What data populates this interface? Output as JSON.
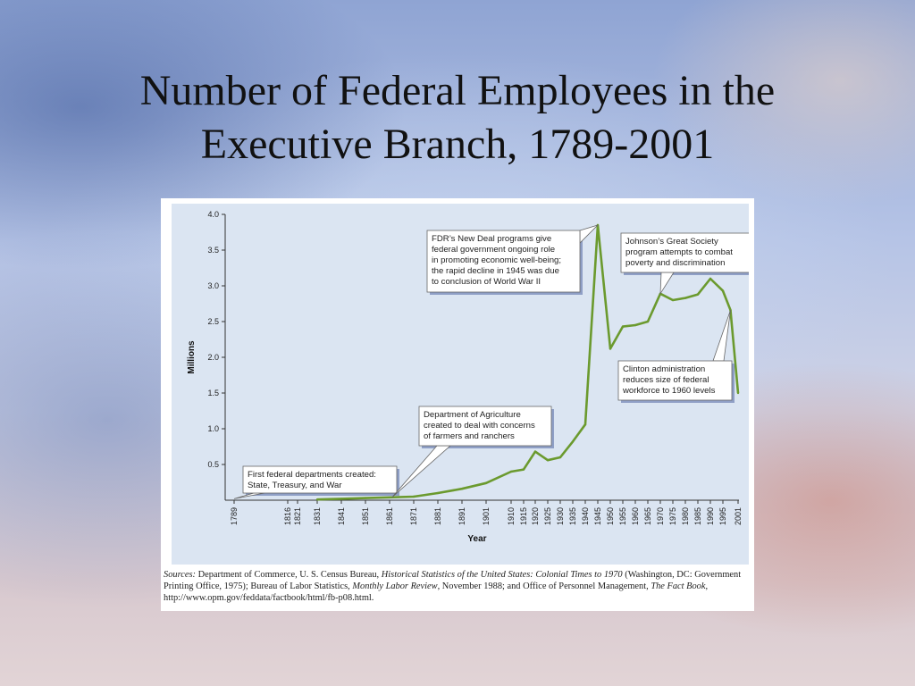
{
  "slide": {
    "title_line1": "Number of Federal Employees in the",
    "title_line2": "Executive Branch, 1789-2001"
  },
  "chart_data": {
    "type": "line",
    "title": "",
    "xlabel": "Year",
    "ylabel": "Millions",
    "ylim": [
      0,
      4.0
    ],
    "yticks": [
      "4.0",
      "3.5",
      "3.0",
      "2.5",
      "2.0",
      "1.5",
      "1.0",
      "0.5"
    ],
    "xticks": [
      "1789",
      "1816",
      "1821",
      "1831",
      "1841",
      "1851",
      "1861",
      "1871",
      "1881",
      "1891",
      "1901",
      "1910",
      "1915",
      "1920",
      "1925",
      "1930",
      "1935",
      "1940",
      "1945",
      "1950",
      "1955",
      "1960",
      "1965",
      "1970",
      "1975",
      "1980",
      "1985",
      "1990",
      "1995",
      "2001"
    ],
    "grid": false,
    "line_color": "#6b9a2e",
    "series": [
      {
        "x": [
          1831,
          1841,
          1851,
          1861,
          1871,
          1881,
          1891,
          1901,
          1910,
          1915,
          1920,
          1925,
          1930,
          1935,
          1940,
          1945,
          1950,
          1955,
          1960,
          1965,
          1970,
          1975,
          1980,
          1985,
          1990,
          1995,
          1998,
          2001
        ],
        "values": [
          0.01,
          0.02,
          0.03,
          0.04,
          0.05,
          0.1,
          0.16,
          0.24,
          0.4,
          0.43,
          0.68,
          0.56,
          0.6,
          0.82,
          1.06,
          3.85,
          2.12,
          2.43,
          2.45,
          2.5,
          2.89,
          2.8,
          2.83,
          2.88,
          3.1,
          2.93,
          2.66,
          1.5
        ]
      }
    ],
    "annotations": [
      {
        "lines": [
          "First federal departments created:",
          "State, Treasury, and War"
        ],
        "year": 1789,
        "value": 0.02
      },
      {
        "lines": [
          "Department of Agriculture",
          "created to deal with concerns",
          "of farmers and ranchers"
        ],
        "year": 1862,
        "value": 0.04
      },
      {
        "lines": [
          "FDR’s New Deal programs give",
          "federal government ongoing role",
          "in promoting economic well-being;",
          "the rapid decline in 1945 was due",
          "to conclusion of World War II"
        ],
        "year": 1945,
        "value": 3.85
      },
      {
        "lines": [
          "Johnson’s Great Society",
          "program attempts to combat",
          "poverty and discrimination"
        ],
        "year": 1970,
        "value": 2.89
      },
      {
        "lines": [
          "Clinton administration",
          "reduces size of federal",
          "workforce to 1960 levels"
        ],
        "year": 1998,
        "value": 2.66
      }
    ]
  },
  "sources": {
    "label": "Sources:",
    "t1": " Department of Commerce, U. S. Census Bureau, ",
    "book1": "Historical Statistics of the United States: Colonial Times to 1970",
    "t2": " (Washington, DC: Government Printing Office, 1975); Bureau of Labor Statistics, ",
    "book2": "Monthly Labor Review",
    "t3": ", November 1988; and Office of Personnel Management, ",
    "book3": "The Fact Book",
    "t4": ", http://www.opm.gov/feddata/factbook/html/fb-p08.html."
  }
}
